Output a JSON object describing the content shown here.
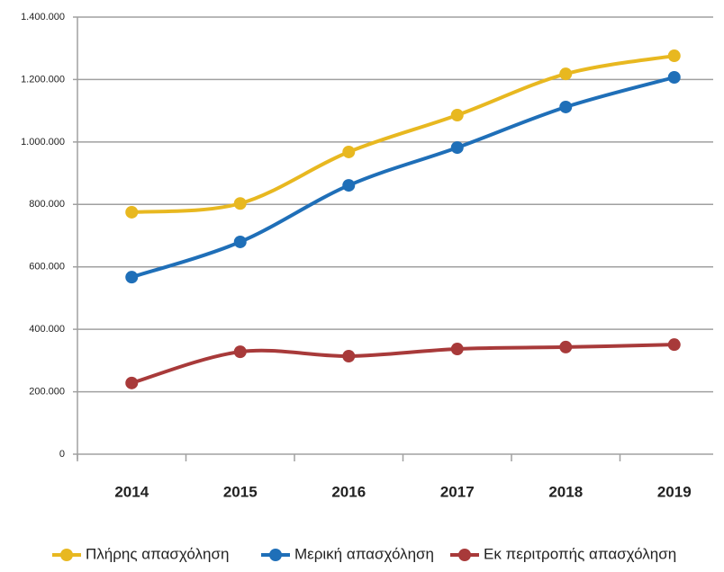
{
  "chart_data": {
    "type": "line",
    "categories": [
      "2014",
      "2015",
      "2016",
      "2017",
      "2018",
      "2019"
    ],
    "series": [
      {
        "name": "Πλήρης απασχόληση",
        "color": "#e8b820",
        "values": [
          775000,
          803000,
          968000,
          1086000,
          1218000,
          1276000
        ]
      },
      {
        "name": "Μερική απασχόληση",
        "color": "#1f6fb8",
        "values": [
          567000,
          680000,
          861000,
          982000,
          1112000,
          1207000
        ]
      },
      {
        "name": "Εκ περιτροπής απασχόληση",
        "color": "#a83a3a",
        "values": [
          228000,
          328000,
          314000,
          337000,
          343000,
          351000
        ]
      }
    ],
    "ylim": [
      0,
      1400000
    ],
    "yticks": [
      0,
      {
        "value": 200000,
        "label": "200.000"
      },
      {
        "value": 400000,
        "label": "400.000"
      },
      {
        "value": 600000,
        "label": "600.000"
      },
      {
        "value": 800000,
        "label": "800.000"
      },
      {
        "value": 1000000,
        "label": "1.000.000"
      },
      {
        "value": 1200000,
        "label": "1.200.000"
      },
      {
        "value": 1400000,
        "label": "1.400.000"
      }
    ],
    "grid": true,
    "legend": "bottom"
  }
}
